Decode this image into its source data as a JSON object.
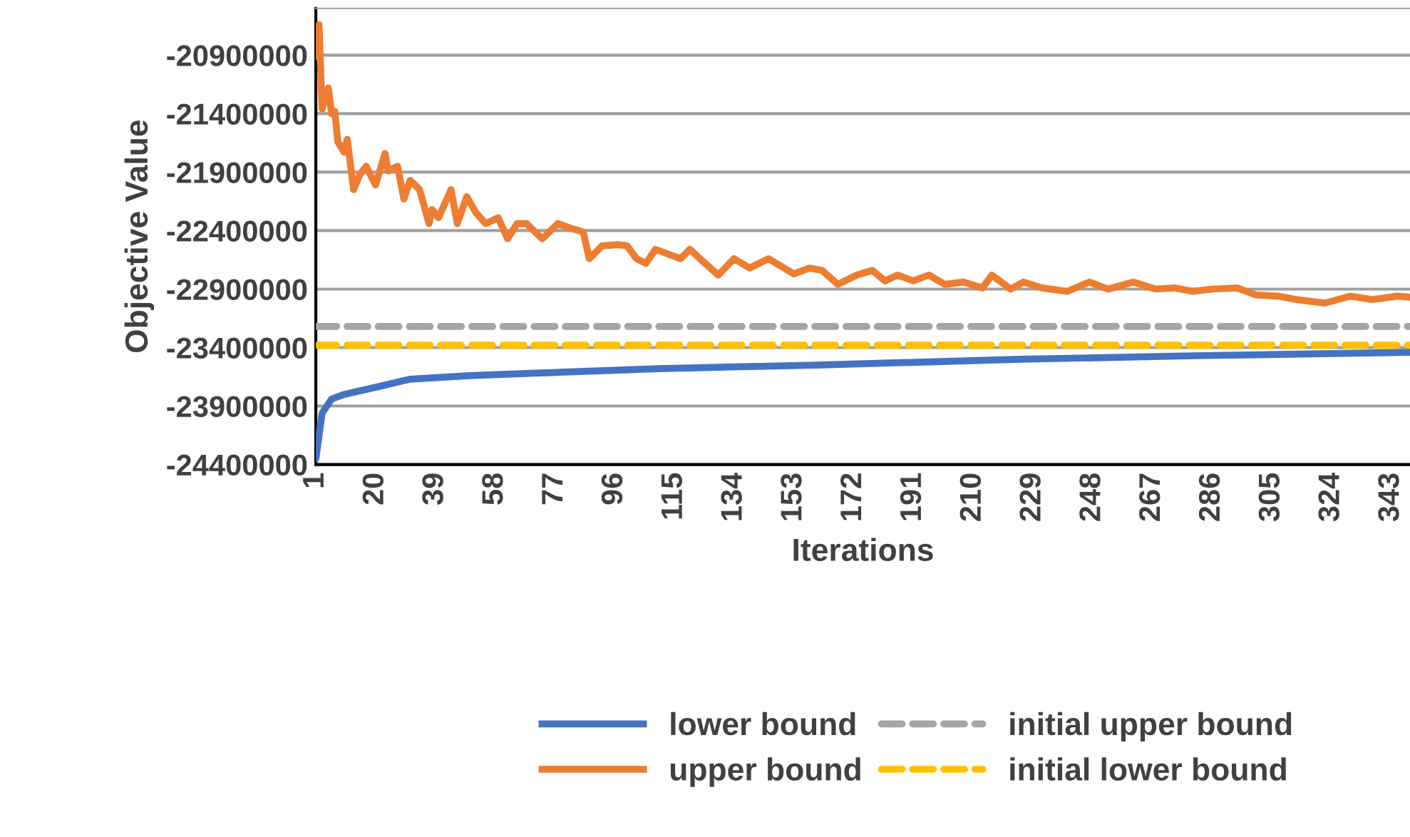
{
  "chart_data": {
    "type": "line",
    "xlabel": "Iterations",
    "ylabel": "Objective Value",
    "xlim": [
      1,
      349
    ],
    "xticks": [
      1,
      20,
      39,
      58,
      77,
      96,
      115,
      134,
      153,
      172,
      191,
      210,
      229,
      248,
      267,
      286,
      305,
      324,
      343
    ],
    "ylim": [
      -24400000,
      -20500000
    ],
    "yticks": [
      -24400000,
      -23900000,
      -23400000,
      -22900000,
      -22400000,
      -21900000,
      -21400000,
      -20900000
    ],
    "grid": "y",
    "legend": "bottom",
    "series": [
      {
        "name": "lower bound",
        "color": "#4472c4",
        "line_style": "solid",
        "x": [
          1,
          3,
          6,
          10,
          20,
          31,
          50,
          80,
          110,
          160,
          225,
          280,
          349
        ],
        "values": [
          -24350000,
          -23960000,
          -23840000,
          -23800000,
          -23740000,
          -23670000,
          -23640000,
          -23610000,
          -23580000,
          -23550000,
          -23500000,
          -23470000,
          -23440000
        ]
      },
      {
        "name": "upper bound",
        "color": "#ed7d31",
        "line_style": "solid",
        "x": [
          1,
          2,
          3,
          5,
          6,
          7,
          8,
          10,
          11,
          13,
          15,
          17,
          20,
          23,
          24,
          27,
          29,
          31,
          34,
          37,
          38,
          40,
          44,
          46,
          49,
          52,
          55,
          59,
          62,
          65,
          68,
          73,
          78,
          82,
          86,
          88,
          92,
          97,
          100,
          103,
          106,
          109,
          113,
          117,
          120,
          124,
          129,
          134,
          139,
          145,
          153,
          158,
          162,
          167,
          173,
          178,
          182,
          186,
          191,
          196,
          201,
          207,
          213,
          216,
          222,
          226,
          232,
          240,
          247,
          253,
          261,
          268,
          274,
          280,
          286,
          294,
          300,
          307,
          313,
          322,
          330,
          337,
          345,
          349
        ],
        "values": [
          -20910000,
          -20640000,
          -21360000,
          -21180000,
          -21400000,
          -21380000,
          -21640000,
          -21730000,
          -21620000,
          -22050000,
          -21920000,
          -21850000,
          -22010000,
          -21740000,
          -21890000,
          -21850000,
          -22130000,
          -21970000,
          -22050000,
          -22340000,
          -22220000,
          -22290000,
          -22050000,
          -22340000,
          -22110000,
          -22250000,
          -22340000,
          -22290000,
          -22470000,
          -22340000,
          -22340000,
          -22470000,
          -22340000,
          -22380000,
          -22410000,
          -22640000,
          -22530000,
          -22520000,
          -22530000,
          -22640000,
          -22680000,
          -22560000,
          -22600000,
          -22640000,
          -22560000,
          -22660000,
          -22780000,
          -22640000,
          -22720000,
          -22640000,
          -22770000,
          -22720000,
          -22740000,
          -22860000,
          -22780000,
          -22740000,
          -22830000,
          -22780000,
          -22830000,
          -22780000,
          -22860000,
          -22840000,
          -22890000,
          -22780000,
          -22900000,
          -22840000,
          -22890000,
          -22920000,
          -22840000,
          -22900000,
          -22840000,
          -22900000,
          -22890000,
          -22920000,
          -22900000,
          -22890000,
          -22950000,
          -22960000,
          -22990000,
          -23020000,
          -22960000,
          -22990000,
          -22960000,
          -22970000
        ]
      },
      {
        "name": "initial upper bound",
        "color": "#a5a5a5",
        "line_style": "dashed",
        "x": [
          1,
          349
        ],
        "values": [
          -23220000,
          -23220000
        ]
      },
      {
        "name": "initial lower bound",
        "color": "#ffc000",
        "line_style": "dashed",
        "x": [
          1,
          349
        ],
        "values": [
          -23380000,
          -23380000
        ]
      }
    ]
  }
}
